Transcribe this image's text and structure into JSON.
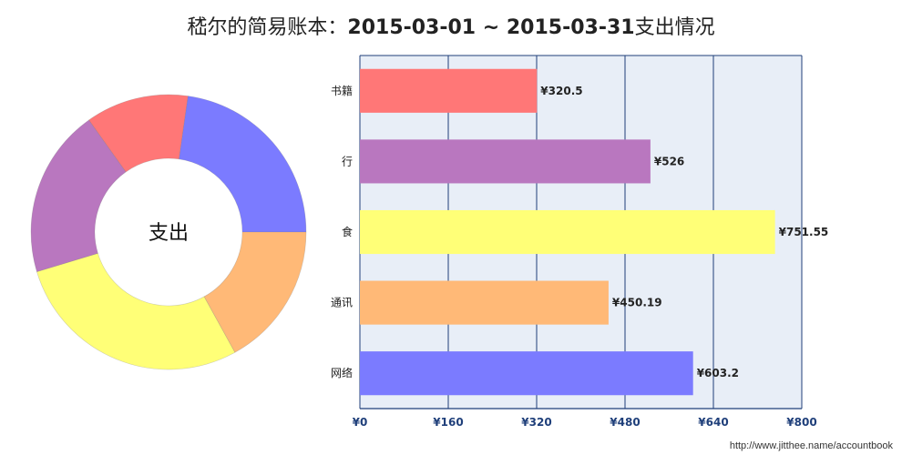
{
  "title_prefix": "嵇尔的简易账本：",
  "title_range": "2015-03-01 ~ 2015-03-31",
  "title_suffix": "支出情况",
  "footer": "http://www.jitthee.name/accountbook",
  "chart_data": [
    {
      "type": "pie",
      "center_label": "支出",
      "slices": [
        {
          "label": "网络",
          "value": 603.2,
          "color": "#7b7bff"
        },
        {
          "label": "书籍",
          "value": 320.5,
          "color": "#ff7777"
        },
        {
          "label": "行",
          "value": 526,
          "color": "#b977bf"
        },
        {
          "label": "食",
          "value": 751.55,
          "color": "#ffff77"
        },
        {
          "label": "通讯",
          "value": 450.19,
          "color": "#ffb977"
        }
      ]
    },
    {
      "type": "bar",
      "orientation": "horizontal",
      "categories": [
        "书籍",
        "行",
        "食",
        "通讯",
        "网络"
      ],
      "values": [
        320.5,
        526,
        751.55,
        450.19,
        603.2
      ],
      "data_labels": [
        "¥320.5",
        "¥526",
        "¥751.55",
        "¥450.19",
        "¥603.2"
      ],
      "colors": [
        "#ff7777",
        "#b977bf",
        "#ffff77",
        "#ffb977",
        "#7b7bff"
      ],
      "xlim": [
        0,
        800
      ],
      "xticks": [
        "¥0",
        "¥160",
        "¥320",
        "¥480",
        "¥640",
        "¥800"
      ],
      "background": "#e8eef7",
      "grid_color": "#1f3f7a"
    }
  ]
}
